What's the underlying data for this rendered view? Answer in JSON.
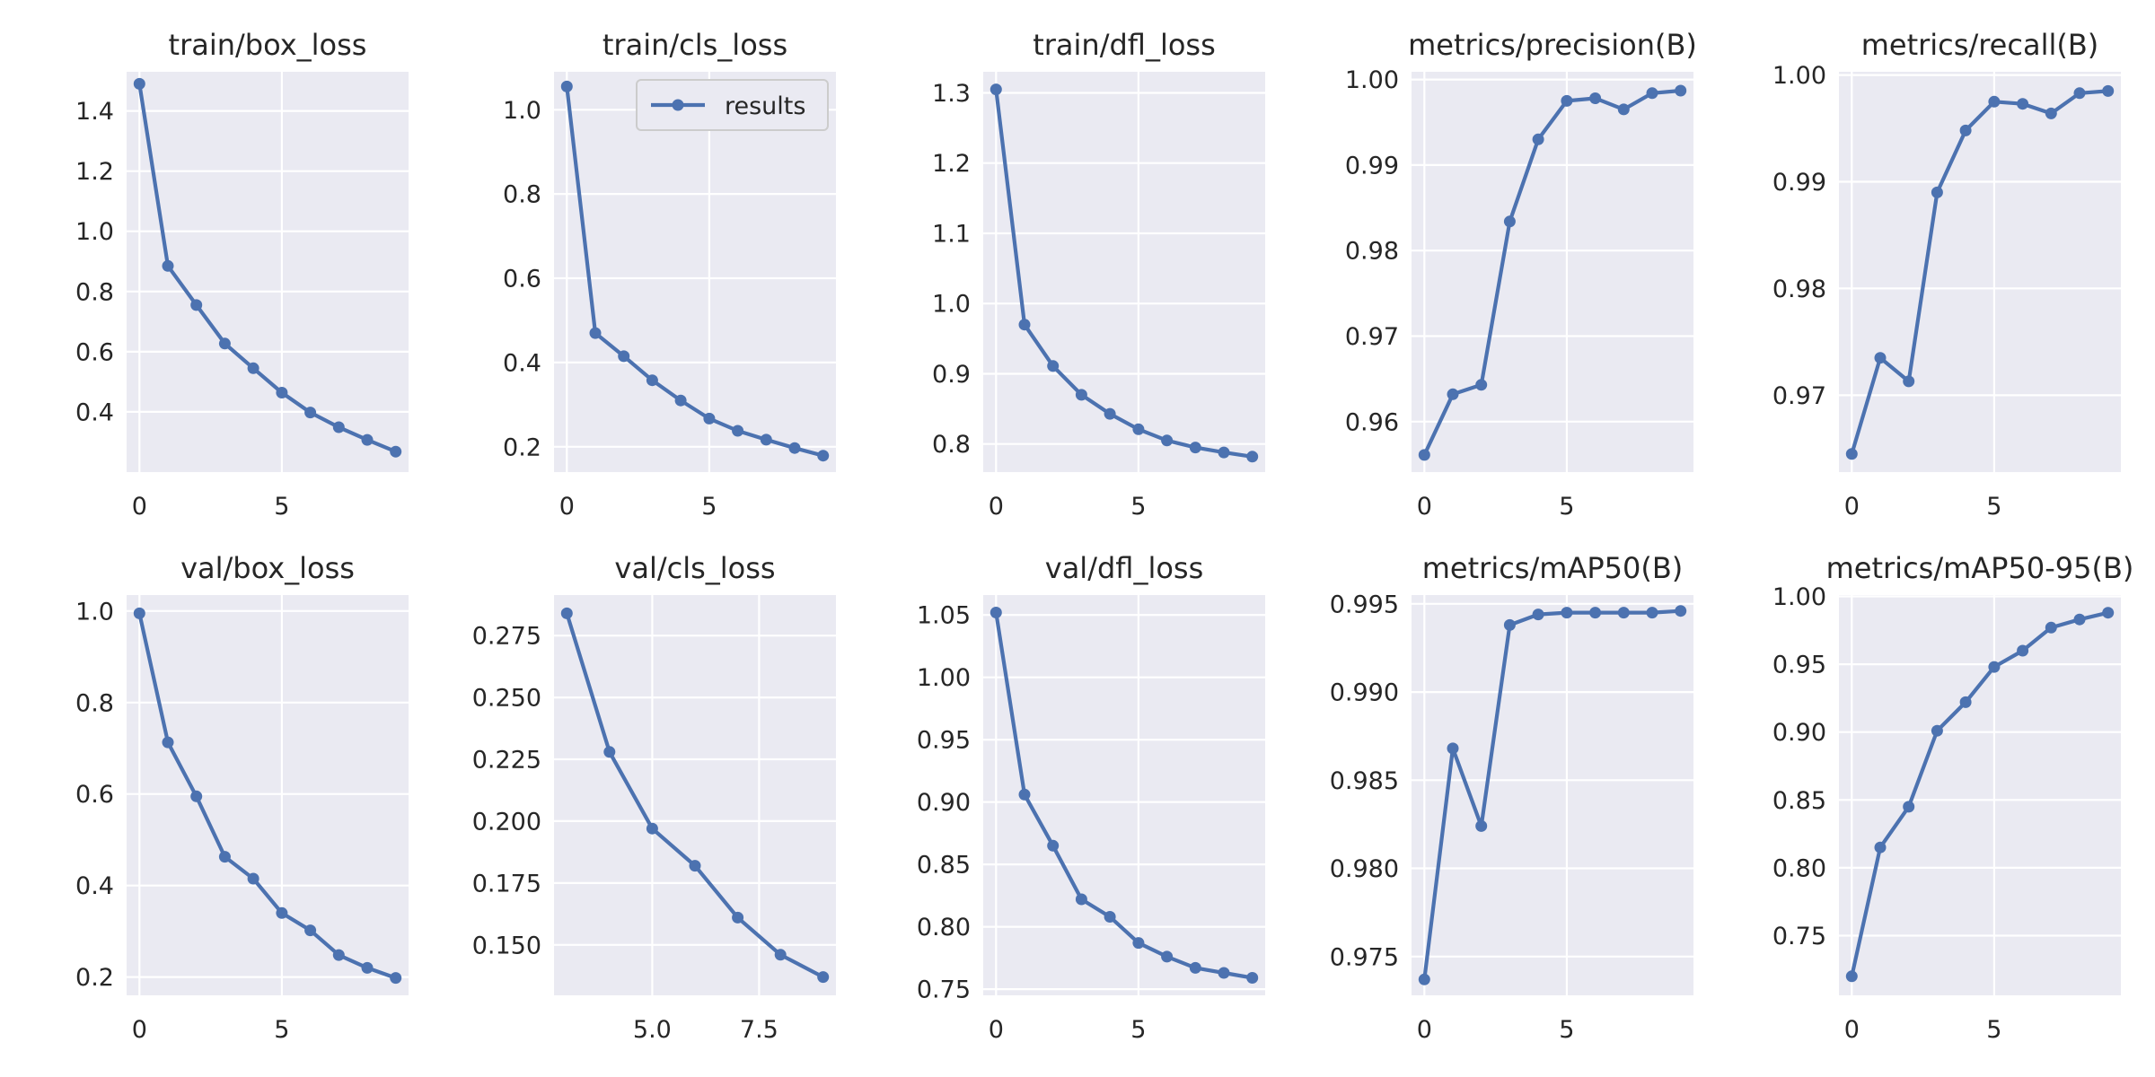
{
  "figure": {
    "legend_label": "results"
  },
  "colors": {
    "line": "#4c72b0",
    "panel_bg": "#eaeaf2",
    "grid": "#ffffff",
    "text": "#262626"
  },
  "chart_data": [
    {
      "type": "line",
      "title": "train/box_loss",
      "x": [
        0,
        1,
        2,
        3,
        4,
        5,
        6,
        7,
        8,
        9
      ],
      "values": [
        1.49,
        0.885,
        0.755,
        0.627,
        0.545,
        0.464,
        0.398,
        0.349,
        0.307,
        0.268
      ],
      "xlim": [
        -0.45,
        9.45
      ],
      "ylim": [
        0.2,
        1.53
      ],
      "xticks": [
        0,
        5
      ],
      "xtick_labels": [
        "0",
        "5"
      ],
      "yticks": [
        0.4,
        0.6,
        0.8,
        1.0,
        1.2,
        1.4
      ],
      "ytick_labels": [
        "0.4",
        "0.6",
        "0.8",
        "1.0",
        "1.2",
        "1.4"
      ]
    },
    {
      "type": "line",
      "title": "train/cls_loss",
      "x": [
        0,
        1,
        2,
        3,
        4,
        5,
        6,
        7,
        8,
        9
      ],
      "values": [
        1.055,
        0.47,
        0.415,
        0.358,
        0.31,
        0.267,
        0.238,
        0.217,
        0.197,
        0.179
      ],
      "xlim": [
        -0.45,
        9.45
      ],
      "ylim": [
        0.14,
        1.09
      ],
      "xticks": [
        0,
        5
      ],
      "xtick_labels": [
        "0",
        "5"
      ],
      "yticks": [
        0.2,
        0.4,
        0.6,
        0.8,
        1.0
      ],
      "ytick_labels": [
        "0.2",
        "0.4",
        "0.6",
        "0.8",
        "1.0"
      ],
      "legend": "upper right"
    },
    {
      "type": "line",
      "title": "train/dfl_loss",
      "x": [
        0,
        1,
        2,
        3,
        4,
        5,
        6,
        7,
        8,
        9
      ],
      "values": [
        1.305,
        0.97,
        0.911,
        0.87,
        0.843,
        0.821,
        0.805,
        0.795,
        0.788,
        0.782
      ],
      "xlim": [
        -0.45,
        9.45
      ],
      "ylim": [
        0.76,
        1.33
      ],
      "xticks": [
        0,
        5
      ],
      "xtick_labels": [
        "0",
        "5"
      ],
      "yticks": [
        0.8,
        0.9,
        1.0,
        1.1,
        1.2,
        1.3
      ],
      "ytick_labels": [
        "0.8",
        "0.9",
        "1.0",
        "1.1",
        "1.2",
        "1.3"
      ]
    },
    {
      "type": "line",
      "title": "metrics/precision(B)",
      "x": [
        0,
        1,
        2,
        3,
        4,
        5,
        6,
        7,
        8,
        9
      ],
      "values": [
        0.9561,
        0.9632,
        0.9643,
        0.9834,
        0.993,
        0.9975,
        0.9978,
        0.9965,
        0.9984,
        0.9987
      ],
      "xlim": [
        -0.45,
        9.45
      ],
      "ylim": [
        0.9541,
        1.0009
      ],
      "xticks": [
        0,
        5
      ],
      "xtick_labels": [
        "0",
        "5"
      ],
      "yticks": [
        0.96,
        0.97,
        0.98,
        0.99,
        1.0
      ],
      "ytick_labels": [
        "0.96",
        "0.97",
        "0.98",
        "0.99",
        "1.00"
      ]
    },
    {
      "type": "line",
      "title": "metrics/recall(B)",
      "x": [
        0,
        1,
        2,
        3,
        4,
        5,
        6,
        7,
        8,
        9
      ],
      "values": [
        0.9645,
        0.9735,
        0.9713,
        0.989,
        0.9948,
        0.9975,
        0.9973,
        0.9964,
        0.9983,
        0.9985
      ],
      "xlim": [
        -0.45,
        9.45
      ],
      "ylim": [
        0.9628,
        1.0003
      ],
      "xticks": [
        0,
        5
      ],
      "xtick_labels": [
        "0",
        "5"
      ],
      "yticks": [
        0.97,
        0.98,
        0.99,
        1.0
      ],
      "ytick_labels": [
        "0.97",
        "0.98",
        "0.99",
        "1.00"
      ]
    },
    {
      "type": "line",
      "title": "val/box_loss",
      "x": [
        0,
        1,
        2,
        3,
        4,
        5,
        6,
        7,
        8,
        9
      ],
      "values": [
        0.995,
        0.713,
        0.595,
        0.463,
        0.415,
        0.34,
        0.302,
        0.248,
        0.22,
        0.198
      ],
      "xlim": [
        -0.45,
        9.45
      ],
      "ylim": [
        0.16,
        1.035
      ],
      "xticks": [
        0,
        5
      ],
      "xtick_labels": [
        "0",
        "5"
      ],
      "yticks": [
        0.2,
        0.4,
        0.6,
        0.8,
        1.0
      ],
      "ytick_labels": [
        "0.2",
        "0.4",
        "0.6",
        "0.8",
        "1.0"
      ]
    },
    {
      "type": "line",
      "title": "val/cls_loss",
      "x": [
        3,
        4,
        5,
        6,
        7,
        8,
        9
      ],
      "values": [
        0.284,
        0.228,
        0.197,
        0.182,
        0.161,
        0.146,
        0.137
      ],
      "xlim": [
        2.7,
        9.3
      ],
      "ylim": [
        0.1296,
        0.2914
      ],
      "xticks": [
        5.0,
        7.5
      ],
      "xtick_labels": [
        "5.0",
        "7.5"
      ],
      "yticks": [
        0.15,
        0.175,
        0.2,
        0.225,
        0.25,
        0.275
      ],
      "ytick_labels": [
        "0.150",
        "0.175",
        "0.200",
        "0.225",
        "0.250",
        "0.275"
      ]
    },
    {
      "type": "line",
      "title": "val/dfl_loss",
      "x": [
        0,
        1,
        2,
        3,
        4,
        5,
        6,
        7,
        8,
        9
      ],
      "values": [
        1.052,
        0.906,
        0.865,
        0.822,
        0.808,
        0.787,
        0.776,
        0.767,
        0.763,
        0.759
      ],
      "xlim": [
        -0.45,
        9.45
      ],
      "ylim": [
        0.745,
        1.066
      ],
      "xticks": [
        0,
        5
      ],
      "xtick_labels": [
        "0",
        "5"
      ],
      "yticks": [
        0.75,
        0.8,
        0.85,
        0.9,
        0.95,
        1.0,
        1.05
      ],
      "ytick_labels": [
        "0.75",
        "0.80",
        "0.85",
        "0.90",
        "0.95",
        "1.00",
        "1.05"
      ]
    },
    {
      "type": "line",
      "title": "metrics/mAP50(B)",
      "x": [
        0,
        1,
        2,
        3,
        4,
        5,
        6,
        7,
        8,
        9
      ],
      "values": [
        0.9737,
        0.9868,
        0.9824,
        0.9938,
        0.9944,
        0.9945,
        0.9945,
        0.9945,
        0.9945,
        0.9946
      ],
      "xlim": [
        -0.45,
        9.45
      ],
      "ylim": [
        0.9728,
        0.9955
      ],
      "xticks": [
        0,
        5
      ],
      "xtick_labels": [
        "0",
        "5"
      ],
      "yticks": [
        0.975,
        0.98,
        0.985,
        0.99,
        0.995
      ],
      "ytick_labels": [
        "0.975",
        "0.980",
        "0.985",
        "0.990",
        "0.995"
      ]
    },
    {
      "type": "line",
      "title": "metrics/mAP50-95(B)",
      "x": [
        0,
        1,
        2,
        3,
        4,
        5,
        6,
        7,
        8,
        9
      ],
      "values": [
        0.72,
        0.815,
        0.845,
        0.901,
        0.922,
        0.948,
        0.96,
        0.977,
        0.983,
        0.988
      ],
      "xlim": [
        -0.45,
        9.45
      ],
      "ylim": [
        0.706,
        1.001
      ],
      "xticks": [
        0,
        5
      ],
      "xtick_labels": [
        "0",
        "5"
      ],
      "yticks": [
        0.75,
        0.8,
        0.85,
        0.9,
        0.95,
        1.0
      ],
      "ytick_labels": [
        "0.75",
        "0.80",
        "0.85",
        "0.90",
        "0.95",
        "1.00"
      ]
    }
  ]
}
